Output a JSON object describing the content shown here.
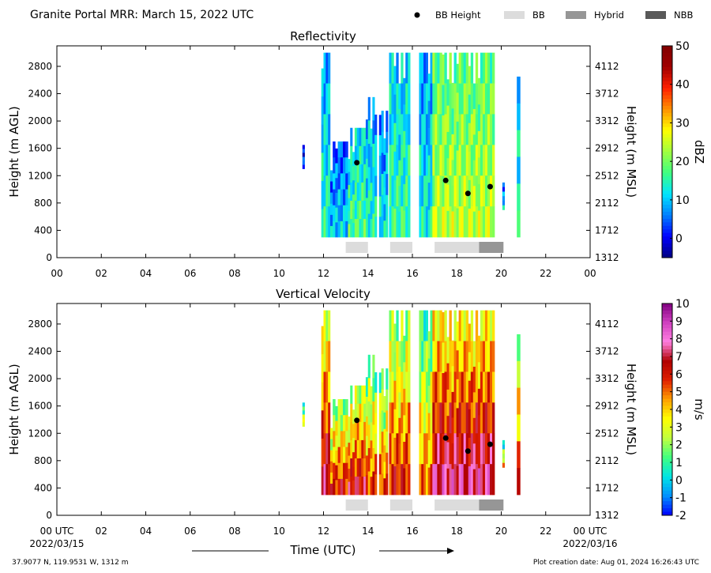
{
  "figure": {
    "title": "Granite Portal MRR:  March 15, 2022 UTC",
    "legend": [
      {
        "label": "BB Height",
        "kind": "dot",
        "color": "#000000"
      },
      {
        "label": "BB",
        "kind": "box",
        "color": "#dcdcdc"
      },
      {
        "label": "Hybrid",
        "kind": "box",
        "color": "#969696"
      },
      {
        "label": "NBB",
        "kind": "box",
        "color": "#595959"
      }
    ],
    "xlabel": "Time (UTC)",
    "x_start_label": "00 UTC",
    "x_start_date": "2022/03/15",
    "x_end_label": "00 UTC",
    "x_end_date": "2022/03/16",
    "location": "37.9077 N, 119.9531 W, 1312 m",
    "creation_date": "Plot creation date: Aug 01, 2024 16:26:43 UTC"
  },
  "chart_data": [
    {
      "type": "heatmap",
      "title": "Reflectivity",
      "ylabel": "Height (m AGL)",
      "ylabel_right": "Height (m MSL)",
      "xlim": [
        0,
        24
      ],
      "ylim": [
        0,
        3100
      ],
      "x_ticks": [
        "00",
        "02",
        "04",
        "06",
        "08",
        "10",
        "12",
        "14",
        "16",
        "18",
        "20",
        "22",
        "00"
      ],
      "y_ticks": [
        0,
        400,
        800,
        1200,
        1600,
        2000,
        2400,
        2800
      ],
      "y_ticks_right": [
        "1312",
        "1712",
        "2112",
        "2512",
        "2912",
        "3312",
        "3712",
        "4112"
      ],
      "colorbar": {
        "label": "dBZ",
        "min": -5,
        "max": 50,
        "ticks": [
          0,
          10,
          20,
          30,
          40,
          50
        ],
        "colors": [
          "#000080",
          "#0000ff",
          "#0080ff",
          "#00e5ff",
          "#40ff80",
          "#a0ff40",
          "#ffff00",
          "#ff9000",
          "#ff2000",
          "#a00000",
          "#800000"
        ]
      },
      "echo_columns": [
        {
          "start": 11.05,
          "end": 11.15,
          "bottom": 1300,
          "top": 1650,
          "value": 3
        },
        {
          "start": 11.9,
          "end": 12.3,
          "bottom": 300,
          "top": 3000,
          "value": 12
        },
        {
          "start": 12.3,
          "end": 13.1,
          "bottom": 300,
          "top": 1700,
          "value": 8
        },
        {
          "start": 13.1,
          "end": 13.9,
          "bottom": 300,
          "top": 1900,
          "value": 15
        },
        {
          "start": 13.9,
          "end": 14.4,
          "bottom": 300,
          "top": 2350,
          "value": 12
        },
        {
          "start": 14.5,
          "end": 14.9,
          "bottom": 300,
          "top": 2150,
          "value": 10
        },
        {
          "start": 14.95,
          "end": 15.9,
          "bottom": 300,
          "top": 3000,
          "value": 14
        },
        {
          "start": 16.3,
          "end": 16.9,
          "bottom": 300,
          "top": 3000,
          "value": 11
        },
        {
          "start": 16.9,
          "end": 19.7,
          "bottom": 300,
          "top": 3000,
          "value": 22
        },
        {
          "start": 20.05,
          "end": 20.15,
          "bottom": 700,
          "top": 1100,
          "value": 8
        },
        {
          "start": 20.7,
          "end": 20.85,
          "bottom": 300,
          "top": 2650,
          "value": 13
        }
      ],
      "bb_heights": [
        {
          "time": 13.5,
          "height": 1390
        },
        {
          "time": 17.5,
          "height": 1130
        },
        {
          "time": 18.5,
          "height": 940
        },
        {
          "time": 19.5,
          "height": 1040
        }
      ],
      "bb_type_bars": [
        {
          "start": 13.0,
          "end": 14.0,
          "type": "BB"
        },
        {
          "start": 15.0,
          "end": 16.0,
          "type": "BB"
        },
        {
          "start": 17.0,
          "end": 19.0,
          "type": "BB"
        },
        {
          "start": 19.0,
          "end": 20.1,
          "type": "Hybrid"
        }
      ]
    },
    {
      "type": "heatmap",
      "title": "Vertical Velocity",
      "ylabel": "Height (m AGL)",
      "ylabel_right": "Height (m MSL)",
      "xlim": [
        0,
        24
      ],
      "ylim": [
        0,
        3100
      ],
      "x_ticks": [
        "",
        "02",
        "04",
        "06",
        "08",
        "10",
        "12",
        "14",
        "16",
        "18",
        "20",
        "22",
        ""
      ],
      "y_ticks": [
        0,
        400,
        800,
        1200,
        1600,
        2000,
        2400,
        2800
      ],
      "y_ticks_right": [
        "1312",
        "1712",
        "2112",
        "2512",
        "2912",
        "3312",
        "3712",
        "4112"
      ],
      "colorbar": {
        "label": "m/s",
        "min": -2,
        "max": 10,
        "ticks": [
          -2,
          -1,
          0,
          1,
          2,
          3,
          4,
          5,
          6,
          7,
          8,
          9,
          10
        ],
        "colors": [
          "#0000ff",
          "#0090ff",
          "#00e5e5",
          "#40ff80",
          "#c0ff40",
          "#ffff00",
          "#ffa000",
          "#e02000",
          "#b00000",
          "#ff80e0",
          "#d040c0",
          "#800080"
        ]
      },
      "echo_columns": [
        {
          "start": 11.05,
          "end": 11.15,
          "bottom": 1300,
          "top": 1650,
          "value": 2
        },
        {
          "start": 11.9,
          "end": 12.3,
          "bottom": 300,
          "top": 3000,
          "value": 5
        },
        {
          "start": 12.3,
          "end": 13.1,
          "bottom": 300,
          "top": 1700,
          "value": 4
        },
        {
          "start": 13.1,
          "end": 13.9,
          "bottom": 300,
          "top": 1900,
          "value": 4.5
        },
        {
          "start": 13.9,
          "end": 14.4,
          "bottom": 300,
          "top": 2350,
          "value": 3.5
        },
        {
          "start": 14.5,
          "end": 14.9,
          "bottom": 300,
          "top": 2150,
          "value": 3.5
        },
        {
          "start": 14.95,
          "end": 15.9,
          "bottom": 300,
          "top": 3000,
          "value": 4
        },
        {
          "start": 16.3,
          "end": 16.9,
          "bottom": 300,
          "top": 3000,
          "value": 3
        },
        {
          "start": 16.9,
          "end": 19.7,
          "bottom": 300,
          "top": 3000,
          "value": 5.5
        },
        {
          "start": 20.05,
          "end": 20.15,
          "bottom": 700,
          "top": 1100,
          "value": 2
        },
        {
          "start": 20.7,
          "end": 20.85,
          "bottom": 300,
          "top": 2650,
          "value": 4
        }
      ],
      "bb_heights": [
        {
          "time": 13.5,
          "height": 1390
        },
        {
          "time": 17.5,
          "height": 1130
        },
        {
          "time": 18.5,
          "height": 940
        },
        {
          "time": 19.5,
          "height": 1040
        }
      ],
      "bb_type_bars": [
        {
          "start": 13.0,
          "end": 14.0,
          "type": "BB"
        },
        {
          "start": 15.0,
          "end": 16.0,
          "type": "BB"
        },
        {
          "start": 17.0,
          "end": 19.0,
          "type": "BB"
        },
        {
          "start": 19.0,
          "end": 20.1,
          "type": "Hybrid"
        }
      ]
    }
  ]
}
